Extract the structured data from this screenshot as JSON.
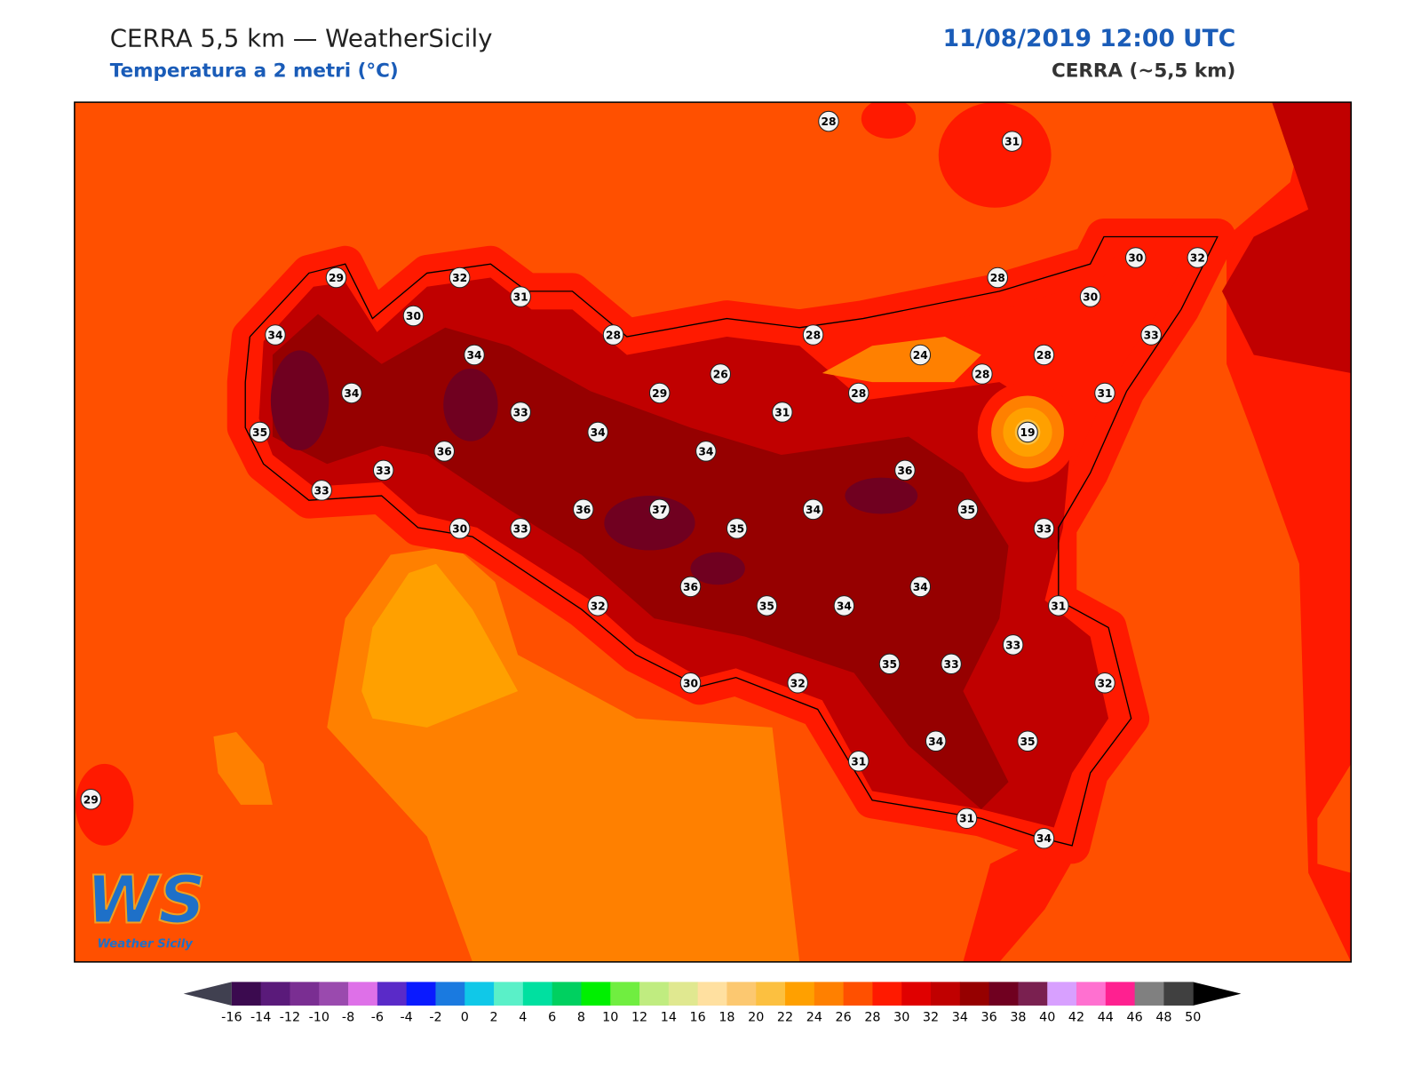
{
  "header": {
    "title": "CERRA 5,5 km — WeatherSicily",
    "subtitle": "Temperatura a 2 metri (°C)",
    "date": "11/08/2019 12:00 UTC",
    "model": "CERRA (~5,5 km)"
  },
  "stations": [
    28,
    31,
    29,
    32,
    31,
    30,
    34,
    34,
    28,
    28,
    28,
    30,
    32,
    30,
    33,
    24,
    28,
    28,
    26,
    34,
    29,
    28,
    31,
    33,
    31,
    35,
    34,
    19,
    36,
    34,
    33,
    36,
    33,
    36,
    37,
    34,
    35,
    30,
    33,
    35,
    33,
    34,
    36,
    32,
    35,
    34,
    31,
    33,
    35,
    33,
    30,
    32,
    32,
    34,
    35,
    31,
    29,
    31,
    34
  ],
  "logo": {
    "initials": "WS",
    "name": "Weather Sicily"
  },
  "colorbar": {
    "ticks": [
      -16,
      -14,
      -12,
      -10,
      -8,
      -6,
      -4,
      -2,
      0,
      2,
      4,
      6,
      8,
      10,
      12,
      14,
      16,
      18,
      20,
      22,
      24,
      26,
      28,
      30,
      32,
      34,
      36,
      38,
      40,
      42,
      44,
      46,
      48,
      50
    ],
    "colors": [
      "#3b0a4f",
      "#5a1a7a",
      "#7a2e92",
      "#9a4aae",
      "#de70e8",
      "#5a2ac8",
      "#0a1aff",
      "#1a7ae0",
      "#10c8e8",
      "#5af0c8",
      "#00e0a0",
      "#00d060",
      "#00f000",
      "#70ee40",
      "#c0ec80",
      "#e0e890",
      "#ffe0a0",
      "#fcc870",
      "#fcc040",
      "#ffa000",
      "#ff8000",
      "#ff5000",
      "#ff1a00",
      "#e00000",
      "#c00000",
      "#960000",
      "#700020",
      "#7a2050",
      "#d8a0ff",
      "#ff70d0",
      "#ff2090",
      "#808080",
      "#404040"
    ],
    "under_color": "#404050",
    "over_color": "#000000"
  }
}
